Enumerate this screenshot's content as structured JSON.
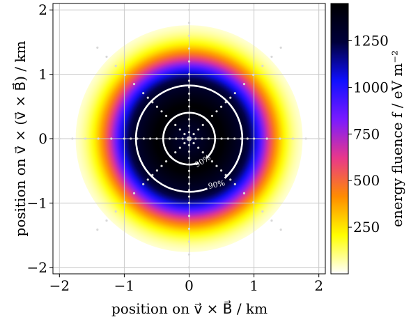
{
  "chart_data": {
    "type": "heatmap",
    "title": "",
    "xlabel": "position on v⃗ × B⃗ / km",
    "ylabel": "position on v⃗ × (v⃗ × B⃗) / km",
    "xlim": [
      -2.1,
      2.1
    ],
    "ylim": [
      -2.1,
      2.1
    ],
    "x_ticks": [
      -2,
      -1,
      0,
      1,
      2
    ],
    "y_ticks": [
      -2,
      -1,
      0,
      1,
      2
    ],
    "x_tick_labels": [
      "−2",
      "−1",
      "0",
      "1",
      "2"
    ],
    "y_tick_labels": [
      "−2",
      "−1",
      "0",
      "1",
      "2"
    ],
    "grid": true,
    "colorbar": {
      "label": "energy fluence  f  / eV m⁻²",
      "range": [
        0,
        1450
      ],
      "ticks": [
        250,
        500,
        750,
        1000,
        1250
      ],
      "tick_labels": [
        "250",
        "500",
        "750",
        "1000",
        "1250"
      ],
      "colormap": [
        "#ffffff",
        "#ffff00",
        "#ff8c00",
        "#e8388a",
        "#7a1bff",
        "#1010ff",
        "#00003a",
        "#000000"
      ]
    },
    "fluence_profile": {
      "peak_center": 1250,
      "ring_peak_radius_km": 0.5,
      "ring_peak": 1450,
      "falloff_radius_km": 1.55
    },
    "contours": [
      {
        "label": "90%",
        "radius_km": 0.4
      },
      {
        "label": "90%",
        "radius_km": 0.82
      }
    ],
    "antenna_star": {
      "arms": 8,
      "inner_spacing_km": 0.1,
      "inner_max_km": 1.0,
      "outer_max_km": 2.0,
      "outer_spacing_km": 0.2,
      "color": "#d8d8d8"
    }
  }
}
